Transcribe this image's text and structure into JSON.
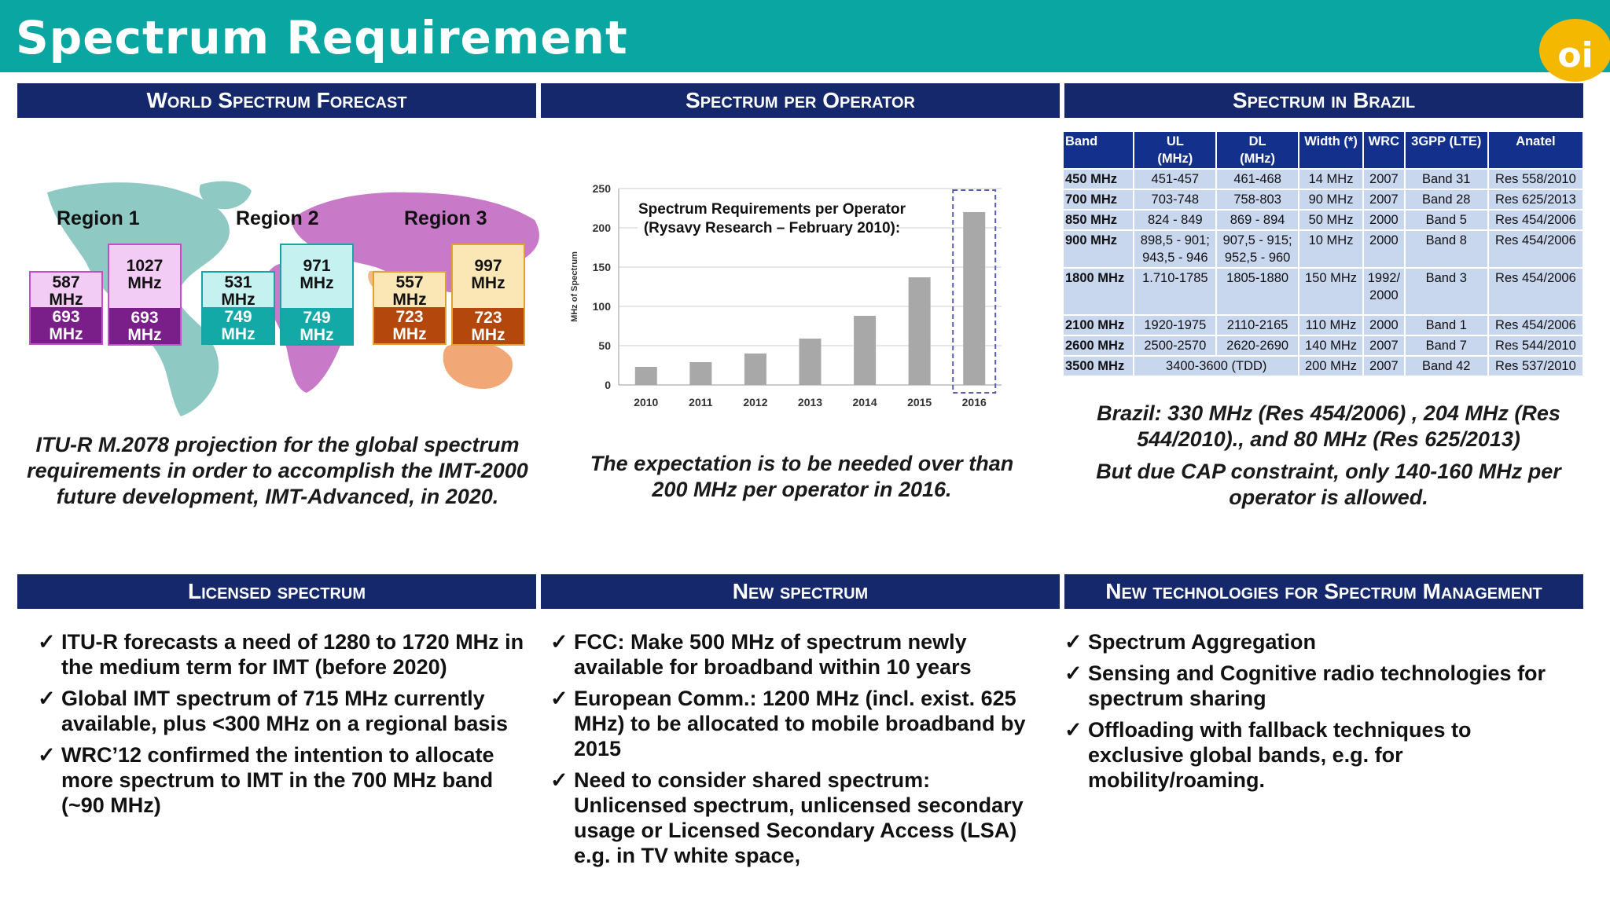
{
  "title": "Spectrum Requirement",
  "logo_text": "oi",
  "sections": {
    "world": "World Spectrum Forecast",
    "operator": "Spectrum per Operator",
    "brazil": "Spectrum in Brazil",
    "licensed": "Licensed spectrum",
    "new": "New spectrum",
    "tech": "New technologies for Spectrum Management"
  },
  "regions": [
    {
      "label": "Region 1",
      "boxes": [
        {
          "top": "587\nMHz",
          "bottom": "693\nMHz"
        },
        {
          "top": "1027\nMHz",
          "bottom": "693\nMHz"
        }
      ]
    },
    {
      "label": "Region 2",
      "boxes": [
        {
          "top": "531\nMHz",
          "bottom": "749\nMHz"
        },
        {
          "top": "971\nMHz",
          "bottom": "749\nMHz"
        }
      ]
    },
    {
      "label": "Region 3",
      "boxes": [
        {
          "top": "557\nMHz",
          "bottom": "723\nMHz"
        },
        {
          "top": "997\nMHz",
          "bottom": "723\nMHz"
        }
      ]
    }
  ],
  "world_caption": "ITU-R M.2078 projection for the global spectrum requirements in order to accomplish the IMT-2000 future development, IMT-Advanced, in 2020.",
  "operator_caption": "The expectation is to be needed over than 200 MHz per operator in 2016.",
  "chart_data": {
    "type": "bar",
    "title": "Spectrum Requirements per Operator",
    "subtitle": "(Rysavy Research – February 2010):",
    "ylabel": "MHz of Spectrum",
    "xlabel": "",
    "categories": [
      "2010",
      "2011",
      "2012",
      "2013",
      "2014",
      "2015",
      "2016"
    ],
    "values": [
      23,
      29,
      40,
      59,
      88,
      137,
      220
    ],
    "ylim": [
      0,
      250
    ],
    "yticks": [
      0,
      50,
      100,
      150,
      200,
      250
    ],
    "highlight": "2016",
    "bar_color": "#a8a8a8"
  },
  "brazil_table": {
    "headers": [
      "Band",
      "UL\n(MHz)",
      "DL\n(MHz)",
      "Width (*)",
      "WRC",
      "3GPP (LTE)",
      "Anatel"
    ],
    "rows": [
      [
        "450 MHz",
        "451-457",
        "461-468",
        "14 MHz",
        "2007",
        "Band 31",
        "Res 558/2010"
      ],
      [
        "700 MHz",
        "703-748",
        "758-803",
        "90 MHz",
        "2007",
        "Band 28",
        "Res 625/2013"
      ],
      [
        "850 MHz",
        "824 - 849",
        "869 - 894",
        "50 MHz",
        "2000",
        "Band 5",
        "Res 454/2006"
      ],
      [
        "900 MHz",
        "898,5 - 901;\n943,5 - 946",
        "907,5 - 915;\n952,5 - 960",
        "10 MHz",
        "2000",
        "Band 8",
        "Res 454/2006"
      ],
      [
        "1800 MHz",
        "1.710-1785",
        "1805-1880",
        "150 MHz",
        "1992/\n2000",
        "Band 3",
        "Res 454/2006"
      ],
      [
        "2100 MHz",
        "1920-1975",
        "2110-2165",
        "110 MHz",
        "2000",
        "Band 1",
        "Res 454/2006"
      ],
      [
        "2600 MHz",
        "2500-2570",
        "2620-2690",
        "140 MHz",
        "2007",
        "Band 7",
        "Res 544/2010"
      ],
      [
        "3500 MHz",
        "3400-3600 (TDD)",
        "",
        "200 MHz",
        "2007",
        "Band 42",
        "Res 537/2010"
      ]
    ]
  },
  "brazil_caption_1": "Brazil:  330 MHz (Res 454/2006) , 204 MHz (Res 544/2010)., and 80 MHz (Res 625/2013)",
  "brazil_caption_2": "But due CAP constraint, only 140-160 MHz per operator is allowed.",
  "check_symbol": "✓",
  "licensed_items": [
    "ITU-R forecasts a need of 1280 to 1720 MHz in the medium term for IMT (before 2020)",
    "Global IMT spectrum of 715 MHz currently available, plus <300 MHz on a regional basis",
    "WRC’12 confirmed the intention to allocate more spectrum to IMT in the 700 MHz band (~90 MHz)"
  ],
  "new_items": [
    "FCC: Make 500 MHz of spectrum newly available for broadband within 10 years",
    "European Comm.: 1200 MHz (incl. exist. 625 MHz) to be allocated to mobile broadband by 2015",
    "Need to consider shared spectrum: Unlicensed spectrum, unlicensed secondary usage or Licensed Secondary Access (LSA) e.g. in TV white space,"
  ],
  "tech_items": [
    "Spectrum Aggregation",
    "Sensing and Cognitive radio technologies for spectrum sharing",
    "Offloading with fallback techniques to exclusive global bands, e.g. for mobility/roaming."
  ],
  "colors": {
    "title_bar": "#0aa6a2",
    "section_header": "#14286b",
    "table_header": "#13318c",
    "table_cell": "#c8d6ee",
    "region1_top": "#f3ccf5",
    "region1_bottom": "#7a1f8a",
    "region2_top": "#c6f1f1",
    "region2_bottom": "#13a9a7",
    "region3_top": "#fbe6b5",
    "region3_bottom": "#b3470c"
  }
}
